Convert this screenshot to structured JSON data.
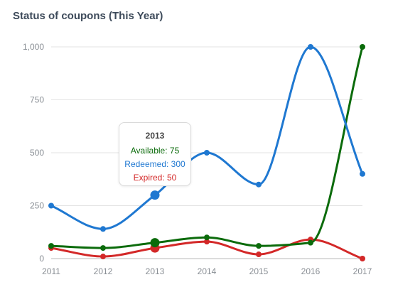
{
  "title": "Status of coupons (This Year)",
  "chart_data": {
    "type": "line",
    "title": "Status of coupons (This Year)",
    "xlabel": "",
    "ylabel": "",
    "x": [
      "2011",
      "2012",
      "2013",
      "2014",
      "2015",
      "2016",
      "2017"
    ],
    "y_ticks": [
      "0",
      "250",
      "500",
      "750",
      "1,000"
    ],
    "ylim": [
      0,
      1000
    ],
    "grid": true,
    "series": [
      {
        "name": "Redeemed",
        "color": "#1f78d1",
        "values": [
          250,
          140,
          300,
          500,
          350,
          1000,
          400
        ]
      },
      {
        "name": "Available",
        "color": "#0b6b0b",
        "values": [
          60,
          50,
          75,
          100,
          60,
          75,
          1000
        ]
      },
      {
        "name": "Expired",
        "color": "#d32828",
        "values": [
          50,
          10,
          50,
          80,
          20,
          90,
          0
        ]
      }
    ],
    "highlight_index": 2
  },
  "tooltip": {
    "title": "2013",
    "rows": [
      {
        "text": "Available: 75",
        "color": "#0b6b0b"
      },
      {
        "text": "Redeemed: 300",
        "color": "#1f78d1"
      },
      {
        "text": "Expired: 50",
        "color": "#d32828"
      }
    ]
  }
}
